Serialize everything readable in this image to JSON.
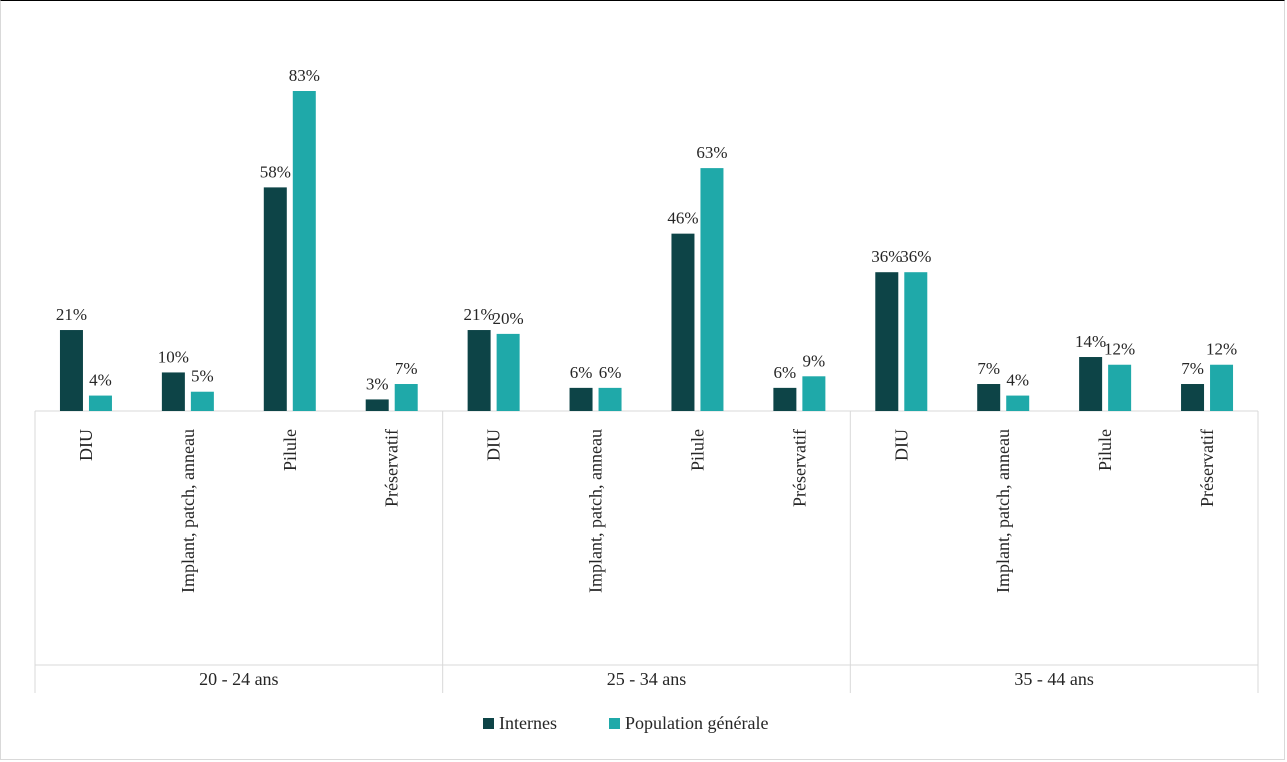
{
  "chart_data": {
    "type": "bar",
    "title": "",
    "xlabel": "",
    "ylabel": "",
    "ylim": [
      0,
      90
    ],
    "grid": false,
    "legend_position": "bottom",
    "groups": [
      {
        "label": "20 - 24 ans",
        "categories": [
          "DIU",
          "Implant, patch, anneau",
          "Pilule",
          "Préservatif"
        ]
      },
      {
        "label": "25 - 34 ans",
        "categories": [
          "DIU",
          "Implant, patch, anneau",
          "Pilule",
          "Préservatif"
        ]
      },
      {
        "label": "35 - 44 ans",
        "categories": [
          "DIU",
          "Implant, patch, anneau",
          "Pilule",
          "Préservatif"
        ]
      }
    ],
    "series": [
      {
        "name": "Internes",
        "color": "#0d4447",
        "values": [
          21,
          10,
          58,
          3,
          21,
          6,
          46,
          6,
          36,
          7,
          14,
          7
        ],
        "labels": [
          "21%",
          "10%",
          "58%",
          "3%",
          "21%",
          "6%",
          "46%",
          "6%",
          "36%",
          "7%",
          "14%",
          "7%"
        ]
      },
      {
        "name": "Population générale",
        "color": "#1fa9a9",
        "values": [
          4,
          5,
          83,
          7,
          20,
          6,
          63,
          9,
          36,
          4,
          12,
          12
        ],
        "labels": [
          "4%",
          "5%",
          "83%",
          "7%",
          "20%",
          "6%",
          "63%",
          "9%",
          "36%",
          "4%",
          "12%",
          "12%"
        ]
      }
    ]
  }
}
